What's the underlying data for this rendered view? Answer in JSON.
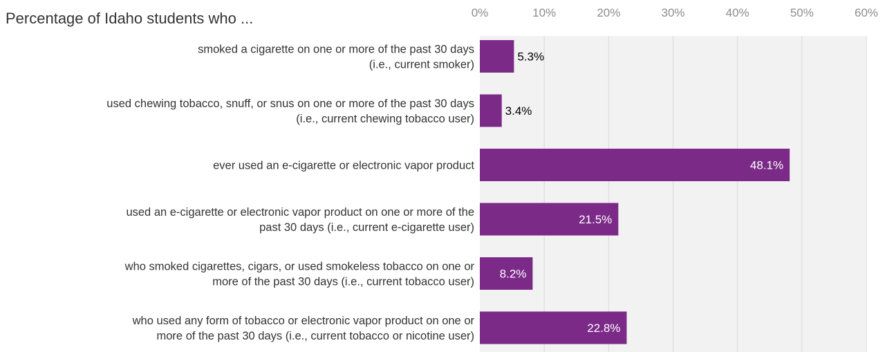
{
  "chart_data": {
    "type": "bar",
    "orientation": "horizontal",
    "title": "Percentage of Idaho students who ...",
    "x_axis": {
      "position": "top",
      "range": [
        0,
        60
      ],
      "tick_values": [
        0,
        10,
        20,
        30,
        40,
        50,
        60
      ],
      "tick_labels": [
        "0%",
        "10%",
        "20%",
        "30%",
        "40%",
        "50%",
        "60%"
      ]
    },
    "grid": true,
    "categories": [
      [
        "smoked a cigarette on one or more of the past 30 days",
        "(i.e., current smoker)"
      ],
      [
        "used chewing tobacco, snuff, or snus on one or more of the past 30 days",
        "(i.e., current chewing tobacco user)"
      ],
      [
        "ever used an e-cigarette or electronic vapor product"
      ],
      [
        "used an e-cigarette or electronic vapor product on one or more of the",
        "past 30 days (i.e., current e-cigarette user)"
      ],
      [
        "who smoked cigarettes, cigars, or used smokeless tobacco on one or",
        "more of the past 30 days (i.e., current tobacco user)"
      ],
      [
        "who used any form of tobacco or electronic vapor product on one or",
        "more of the past 30 days (i.e., current tobacco or nicotine user)"
      ]
    ],
    "values": [
      5.3,
      3.4,
      48.1,
      21.5,
      8.2,
      22.8
    ],
    "value_labels": [
      "5.3%",
      "3.4%",
      "48.1%",
      "21.5%",
      "8.2%",
      "22.8%"
    ],
    "colors": {
      "bar": "#7b2a88",
      "plot_background": "#f2f2f2",
      "gridline": "#d9d9d9",
      "label_inside": "#ffffff",
      "label_outside": "#000000"
    }
  }
}
